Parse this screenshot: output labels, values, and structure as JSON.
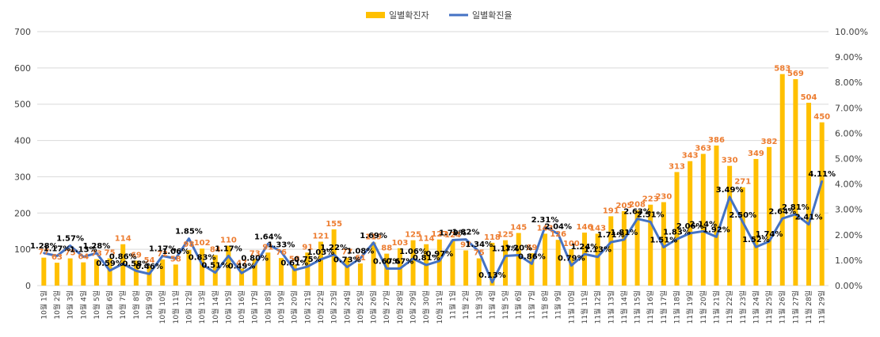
{
  "chart_data": {
    "type": "bar+line",
    "title": "",
    "categories": [
      "10월 1일",
      "10월 2일",
      "10월 3일",
      "10월 4일",
      "10월 5일",
      "10월 6일",
      "10월 7일",
      "10월 8일",
      "10월 9일",
      "10월 10일",
      "10월 11일",
      "10월 12일",
      "10월 13일",
      "10월 14일",
      "10월 15일",
      "10월 16일",
      "10월 17일",
      "10월 18일",
      "10월 19일",
      "10월 20일",
      "10월 21일",
      "10월 22일",
      "10월 23일",
      "10월 24일",
      "10월 25일",
      "10월 26일",
      "10월 27일",
      "10월 28일",
      "10월 29일",
      "10월 30일",
      "10월 31일",
      "11월 1일",
      "11월 2일",
      "11월 3일",
      "11월 4일",
      "11월 5일",
      "11월 6일",
      "11월 7일",
      "11월 8일",
      "11월 9일",
      "11월 10일",
      "11월 11일",
      "11월 12일",
      "11월 13일",
      "11월 14일",
      "11월 15일",
      "11월 16일",
      "11월 17일",
      "11월 18일",
      "11월 19일",
      "11월 20일",
      "11월 21일",
      "11월 22일",
      "11월 23일",
      "11월 24일",
      "11월 25일",
      "11월 26일",
      "11월 27일",
      "11월 28일",
      "11월 29일"
    ],
    "series": [
      {
        "name": "일별확진자",
        "axis": "left",
        "color": "#FFC000",
        "label_color": "#ED7D31",
        "values": [
          77,
          63,
          75,
          64,
          73,
          75,
          114,
          69,
          54,
          72,
          58,
          98,
          102,
          84,
          110,
          47,
          73,
          91,
          76,
          58,
          91,
          121,
          155,
          77,
          61,
          119,
          88,
          103,
          125,
          114,
          127,
          124,
          97,
          75,
          118,
          125,
          145,
          89,
          143,
          126,
          100,
          146,
          143,
          191,
          205,
          208,
          223,
          230,
          313,
          343,
          363,
          386,
          330,
          271,
          349,
          382,
          583,
          569,
          504,
          450
        ]
      },
      {
        "name": "일별확진율",
        "axis": "right",
        "color": "#4472C4",
        "label_color": "#000000",
        "values": [
          1.28,
          1.17,
          1.57,
          1.13,
          1.28,
          0.59,
          0.86,
          0.58,
          0.46,
          1.17,
          1.06,
          1.85,
          0.83,
          0.51,
          1.17,
          0.49,
          0.8,
          1.64,
          1.33,
          0.61,
          0.75,
          1.03,
          1.22,
          0.73,
          1.08,
          1.69,
          0.67,
          0.67,
          1.06,
          0.81,
          0.97,
          1.79,
          1.82,
          1.34,
          0.13,
          1.17,
          1.2,
          0.86,
          2.31,
          2.04,
          0.79,
          1.24,
          1.13,
          1.71,
          1.81,
          2.63,
          2.51,
          1.51,
          1.83,
          2.06,
          2.14,
          1.92,
          3.49,
          2.5,
          1.52,
          1.74,
          2.64,
          2.81,
          2.41,
          4.11
        ]
      }
    ],
    "left_axis": {
      "min": 0,
      "max": 700,
      "step": 100,
      "ticks": [
        "0",
        "100",
        "200",
        "300",
        "400",
        "500",
        "600",
        "700"
      ]
    },
    "right_axis": {
      "min": 0,
      "max": 10,
      "step": 1,
      "ticks": [
        "0.00%",
        "1.00%",
        "2.00%",
        "3.00%",
        "4.00%",
        "5.00%",
        "6.00%",
        "7.00%",
        "8.00%",
        "9.00%",
        "10.00%"
      ]
    },
    "legend_position": "top-center",
    "grid": true
  }
}
